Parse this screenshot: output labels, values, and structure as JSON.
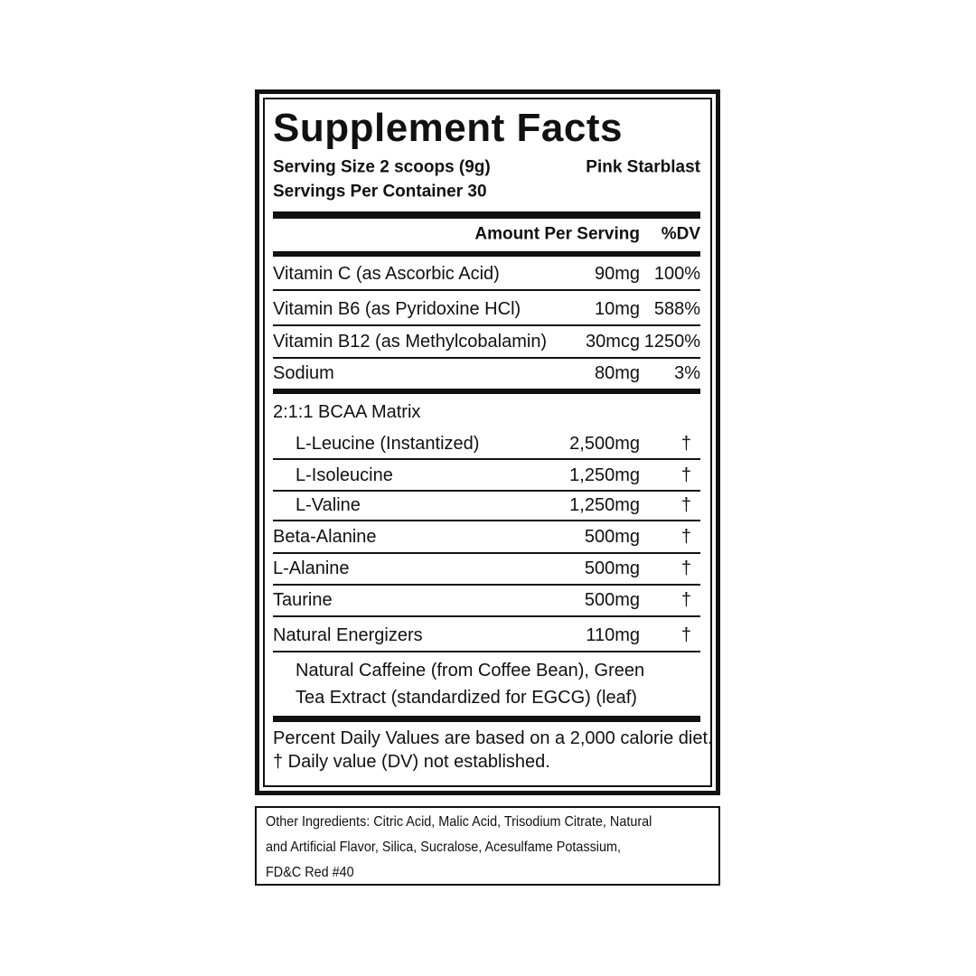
{
  "header": {
    "title": "Supplement Facts",
    "serving_size": "Serving Size 2 scoops (9g)",
    "flavor": "Pink Starblast",
    "servings_per_container": "Servings Per Container 30"
  },
  "columns": {
    "amount": "Amount Per Serving",
    "dv": "%DV"
  },
  "nutrients": [
    {
      "name": "Vitamin C (as Ascorbic Acid)",
      "amount": "90mg",
      "dv": "100%"
    },
    {
      "name": "Vitamin B6 (as Pyridoxine HCl)",
      "amount": "10mg",
      "dv": "588%"
    },
    {
      "name": "Vitamin B12 (as Methylcobalamin)",
      "amount": "30mcg",
      "dv": "1250%"
    },
    {
      "name": "Sodium",
      "amount": "80mg",
      "dv": "3%"
    }
  ],
  "blend": {
    "name": "2:1:1 BCAA Matrix",
    "items": [
      {
        "name": "L-Leucine (Instantized)",
        "amount": "2,500mg",
        "dv": "†"
      },
      {
        "name": "L-Isoleucine",
        "amount": "1,250mg",
        "dv": "†"
      },
      {
        "name": "L-Valine",
        "amount": "1,250mg",
        "dv": "†"
      }
    ]
  },
  "ingredients": [
    {
      "name": "Beta-Alanine",
      "amount": "500mg",
      "dv": "†"
    },
    {
      "name": "L-Alanine",
      "amount": "500mg",
      "dv": "†"
    },
    {
      "name": "Taurine",
      "amount": "500mg",
      "dv": "†"
    },
    {
      "name": "Natural Energizers",
      "amount": "110mg",
      "dv": "†"
    }
  ],
  "energizer_description": [
    "Natural Caffeine (from Coffee Bean), Green",
    "Tea Extract (standardized for EGCG) (leaf)"
  ],
  "footnotes": [
    "Percent Daily Values are based on a 2,000 calorie diet.",
    "† Daily value (DV) not established."
  ],
  "other_ingredients": [
    "Other Ingredients: Citric Acid, Malic Acid, Trisodium Citrate, Natural",
    "and Artificial Flavor, Silica, Sucralose, Acesulfame Potassium,",
    "FD&C Red #40"
  ]
}
